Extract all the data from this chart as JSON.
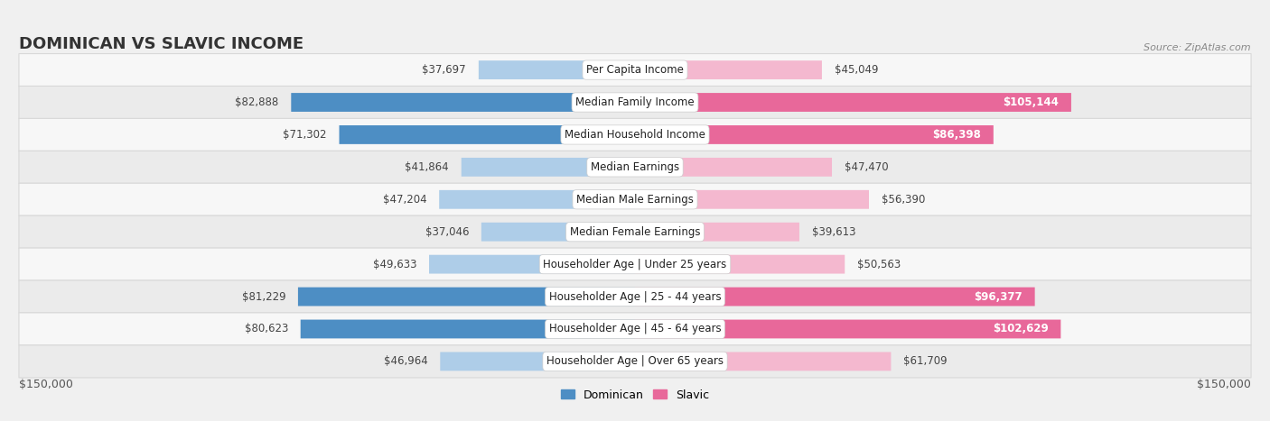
{
  "title": "Dominican vs Slavic Income",
  "source": "Source: ZipAtlas.com",
  "categories": [
    "Per Capita Income",
    "Median Family Income",
    "Median Household Income",
    "Median Earnings",
    "Median Male Earnings",
    "Median Female Earnings",
    "Householder Age | Under 25 years",
    "Householder Age | 25 - 44 years",
    "Householder Age | 45 - 64 years",
    "Householder Age | Over 65 years"
  ],
  "dominican_values": [
    37697,
    82888,
    71302,
    41864,
    47204,
    37046,
    49633,
    81229,
    80623,
    46964
  ],
  "slavic_values": [
    45049,
    105144,
    86398,
    47470,
    56390,
    39613,
    50563,
    96377,
    102629,
    61709
  ],
  "dominican_labels": [
    "$37,697",
    "$82,888",
    "$71,302",
    "$41,864",
    "$47,204",
    "$37,046",
    "$49,633",
    "$81,229",
    "$80,623",
    "$46,964"
  ],
  "slavic_labels": [
    "$45,049",
    "$105,144",
    "$86,398",
    "$47,470",
    "$56,390",
    "$39,613",
    "$50,563",
    "$96,377",
    "$102,629",
    "$61,709"
  ],
  "max_value": 150000,
  "dominican_color_strong": "#4d8ec4",
  "dominican_color_light": "#aecde8",
  "slavic_color_strong": "#e8689a",
  "slavic_color_light": "#f4b8cf",
  "bg_color": "#f0f0f0",
  "row_bg_even": "#f7f7f7",
  "row_bg_odd": "#ebebeb",
  "legend_dominican": "Dominican",
  "legend_slavic": "Slavic",
  "xlabel_left": "$150,000",
  "xlabel_right": "$150,000",
  "title_fontsize": 13,
  "label_fontsize": 8.5,
  "category_fontsize": 8.5,
  "strong_threshold": 65000
}
